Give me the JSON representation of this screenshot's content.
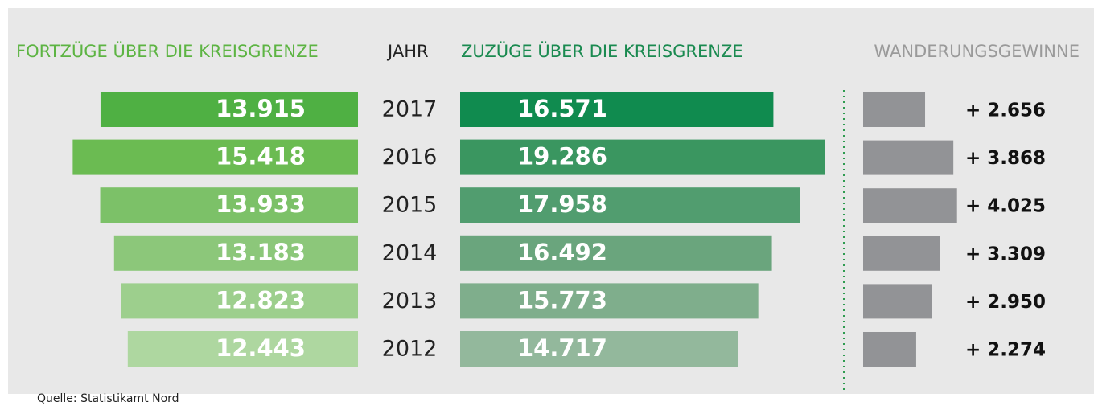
{
  "chart_data": {
    "type": "butterfly-bar",
    "headers": {
      "left": "FORTZÜGE ÜBER DIE KREISGRENZE",
      "middle": "JAHR",
      "right": "ZUZÜGE ÜBER DIE KREISGRENZE",
      "gain": "WANDERUNGSGEWINNE"
    },
    "categories": [
      "2017",
      "2016",
      "2015",
      "2014",
      "2013",
      "2012"
    ],
    "series": [
      {
        "name": "FORTZÜGE ÜBER DIE KREISGRENZE",
        "colors": [
          "#4fb043",
          "#6bbb52",
          "#7cc168",
          "#8cc77a",
          "#9dcf8d",
          "#aed7a0"
        ],
        "values": [
          13915,
          15418,
          13933,
          13183,
          12823,
          12443
        ],
        "value_labels": [
          "13.915",
          "15.418",
          "13.933",
          "13.183",
          "12.823",
          "12.443"
        ]
      },
      {
        "name": "ZUZÜGE ÜBER DIE KREISGRENZE",
        "colors": [
          "#108b4f",
          "#3a9660",
          "#519d6f",
          "#6aa57d",
          "#7fae8c",
          "#93b89c"
        ],
        "values": [
          16571,
          19286,
          17958,
          16492,
          15773,
          14717
        ],
        "value_labels": [
          "16.571",
          "19.286",
          "17.958",
          "16.492",
          "15.773",
          "14.717"
        ]
      },
      {
        "name": "WANDERUNGSGEWINNE",
        "color": "#929396",
        "values": [
          2656,
          3868,
          4025,
          3309,
          2950,
          2274
        ],
        "value_labels": [
          "+ 2.656",
          "+ 3.868",
          "+ 4.025",
          "+ 3.309",
          "+ 2.950",
          "+ 2.274"
        ]
      }
    ],
    "source": "Quelle: Statistikamt Nord"
  }
}
